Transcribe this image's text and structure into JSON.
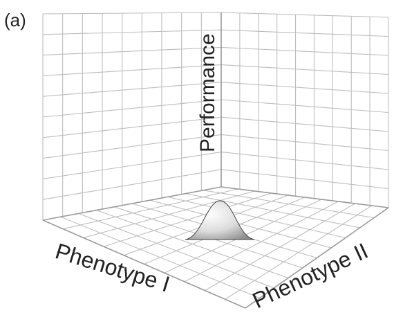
{
  "panel_label": "(a)",
  "axes": {
    "vertical": "Performance",
    "left": "Phenotype I",
    "right": "Phenotype II"
  },
  "colors": {
    "grid": "#bdbdbd",
    "frame": "#9a9a9a",
    "text": "#222222",
    "peak_light": "#ffffff",
    "peak_dark": "#8a8a8a"
  }
}
